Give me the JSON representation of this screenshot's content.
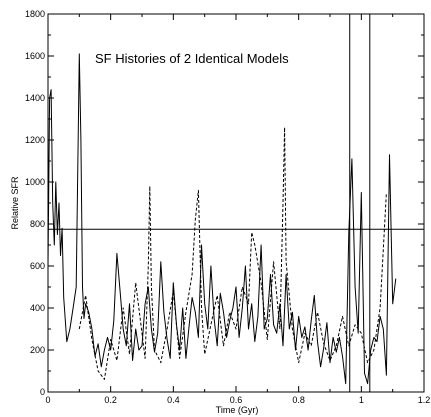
{
  "chart_data": {
    "type": "line",
    "title": "SF Histories of 2 Identical Models",
    "xlabel": "Time (Gyr)",
    "ylabel": "Relative SFR",
    "xlim": [
      0,
      1.2
    ],
    "ylim": [
      0,
      1800
    ],
    "x_ticks": [
      "0",
      "0.2",
      "0.4",
      "0.6",
      "0.8",
      "1",
      "1.2"
    ],
    "y_ticks": [
      "0",
      "200",
      "400",
      "600",
      "800",
      "1000",
      "1200",
      "1400",
      "1600",
      "1800"
    ],
    "grid": false,
    "legend": "none",
    "series": [
      {
        "style": "solid",
        "x": [
          0.0,
          0.005,
          0.01,
          0.015,
          0.02,
          0.025,
          0.03,
          0.035,
          0.04,
          0.045,
          0.05,
          0.06,
          0.07,
          0.08,
          0.09,
          0.1,
          0.105,
          0.11,
          0.115,
          0.12,
          0.13,
          0.14,
          0.15,
          0.16,
          0.17,
          0.18,
          0.19,
          0.2,
          0.21,
          0.22,
          0.23,
          0.24,
          0.25,
          0.26,
          0.27,
          0.28,
          0.29,
          0.3,
          0.31,
          0.32,
          0.33,
          0.34,
          0.35,
          0.36,
          0.37,
          0.38,
          0.39,
          0.4,
          0.41,
          0.42,
          0.43,
          0.44,
          0.45,
          0.46,
          0.47,
          0.48,
          0.49,
          0.5,
          0.51,
          0.52,
          0.53,
          0.54,
          0.55,
          0.56,
          0.57,
          0.58,
          0.59,
          0.6,
          0.61,
          0.62,
          0.63,
          0.64,
          0.65,
          0.66,
          0.67,
          0.68,
          0.69,
          0.7,
          0.71,
          0.72,
          0.73,
          0.74,
          0.75,
          0.76,
          0.77,
          0.78,
          0.79,
          0.8,
          0.81,
          0.82,
          0.83,
          0.84,
          0.85,
          0.86,
          0.87,
          0.88,
          0.89,
          0.9,
          0.91,
          0.92,
          0.93,
          0.94,
          0.95,
          0.96,
          0.97,
          0.98,
          0.99,
          1.0,
          1.01,
          1.02,
          1.03,
          1.04,
          1.05,
          1.06,
          1.07,
          1.08,
          1.09,
          1.1,
          1.11
        ],
        "y": [
          600,
          1400,
          1440,
          900,
          700,
          1000,
          750,
          900,
          650,
          780,
          450,
          240,
          300,
          400,
          500,
          1610,
          1200,
          500,
          350,
          420,
          380,
          300,
          170,
          230,
          120,
          200,
          260,
          200,
          340,
          660,
          480,
          300,
          220,
          420,
          150,
          300,
          200,
          220,
          420,
          500,
          300,
          190,
          280,
          620,
          380,
          250,
          160,
          520,
          320,
          200,
          400,
          160,
          310,
          450,
          380,
          260,
          700,
          420,
          300,
          600,
          350,
          220,
          470,
          380,
          260,
          340,
          400,
          500,
          260,
          400,
          600,
          300,
          420,
          240,
          360,
          700,
          300,
          350,
          560,
          320,
          280,
          420,
          220,
          560,
          300,
          380,
          200,
          360,
          260,
          310,
          200,
          340,
          460,
          240,
          120,
          210,
          330,
          140,
          260,
          190,
          260,
          170,
          40,
          760,
          1110,
          500,
          280,
          950,
          90,
          40,
          200,
          260,
          240,
          360,
          300,
          80,
          1130,
          420,
          540
        ]
      },
      {
        "style": "dashed",
        "x": [
          0.1,
          0.12,
          0.14,
          0.16,
          0.18,
          0.2,
          0.22,
          0.24,
          0.26,
          0.28,
          0.3,
          0.31,
          0.32,
          0.325,
          0.33,
          0.34,
          0.36,
          0.38,
          0.4,
          0.42,
          0.44,
          0.46,
          0.47,
          0.48,
          0.49,
          0.5,
          0.52,
          0.54,
          0.56,
          0.58,
          0.6,
          0.62,
          0.64,
          0.65,
          0.66,
          0.68,
          0.7,
          0.72,
          0.74,
          0.75,
          0.755,
          0.76,
          0.77,
          0.78,
          0.8,
          0.82,
          0.84,
          0.86,
          0.88,
          0.9,
          0.92,
          0.94,
          0.96,
          0.98,
          1.0,
          1.02,
          1.04,
          1.06,
          1.08
        ],
        "y": [
          300,
          460,
          250,
          100,
          60,
          250,
          150,
          400,
          180,
          520,
          280,
          160,
          600,
          980,
          500,
          200,
          140,
          300,
          480,
          160,
          380,
          560,
          820,
          960,
          400,
          180,
          320,
          460,
          220,
          380,
          300,
          500,
          420,
          760,
          700,
          520,
          250,
          620,
          300,
          900,
          1260,
          620,
          460,
          300,
          140,
          280,
          220,
          380,
          230,
          150,
          220,
          360,
          220,
          320,
          280,
          140,
          200,
          400,
          950
        ]
      }
    ],
    "reference_lines": {
      "horizontal_y": 775,
      "vertical_x": [
        0.963,
        1.027
      ]
    }
  }
}
